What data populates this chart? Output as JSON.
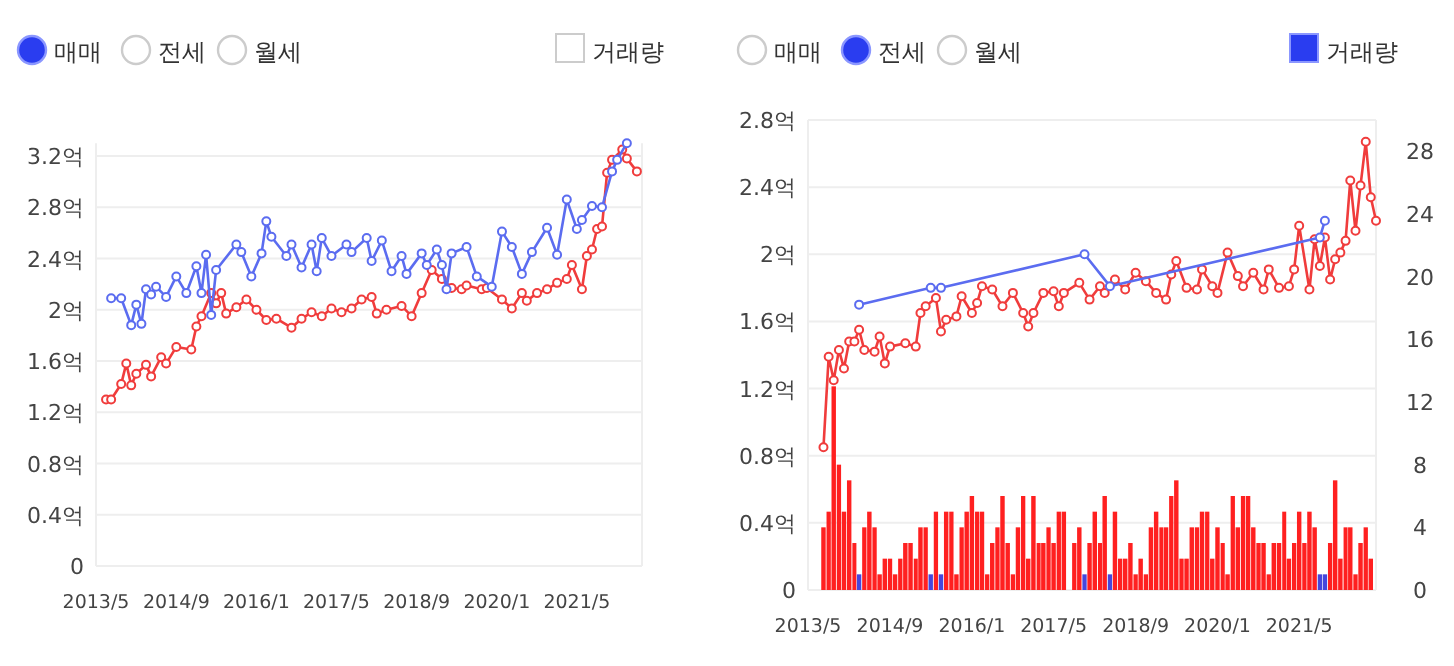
{
  "chart_data": [
    {
      "type": "line",
      "annotations": [
        "매매",
        "전세",
        "월세",
        "거래량"
      ],
      "xlim": [
        "2013-05",
        "2022-06"
      ],
      "xticks": [
        {
          "value": "2013-05",
          "label": "2013/5"
        },
        {
          "value": "2014-09",
          "label": "2014/9"
        },
        {
          "value": "2016-01",
          "label": "2016/1"
        },
        {
          "value": "2017-05",
          "label": "2017/5"
        },
        {
          "value": "2018-09",
          "label": "2018/9"
        },
        {
          "value": "2020-01",
          "label": "2020/1"
        },
        {
          "value": "2021-05",
          "label": "2021/5"
        }
      ],
      "ylim": [
        0,
        3.3
      ],
      "yticks": [
        0,
        {
          "value": 0.4,
          "label": "0.4억"
        },
        {
          "value": 0.8,
          "label": "0.8억"
        },
        {
          "value": 1.2,
          "label": "1.2억"
        },
        {
          "value": 1.6,
          "label": "1.6억"
        },
        {
          "value": 2,
          "label": "2억"
        },
        {
          "value": 2.4,
          "label": "2.4억"
        },
        {
          "value": 2.8,
          "label": "2.8억"
        },
        {
          "value": 3.2,
          "label": "3.2억"
        }
      ],
      "grid": "y",
      "marker": "circle",
      "series": [
        {
          "color": "#f03c3c",
          "x": [
            "2013-07",
            "2013-08",
            "2013-10",
            "2013-11",
            "2013-12",
            "2014-01",
            "2014-03",
            "2014-04",
            "2014-06",
            "2014-07",
            "2014-09",
            "2014-12",
            "2015-01",
            "2015-02",
            "2015-04",
            "2015-05",
            "2015-06",
            "2015-07",
            "2015-09",
            "2015-11",
            "2016-01",
            "2016-03",
            "2016-05",
            "2016-08",
            "2016-10",
            "2016-12",
            "2017-02",
            "2017-04",
            "2017-06",
            "2017-08",
            "2017-10",
            "2017-12",
            "2018-01",
            "2018-03",
            "2018-06",
            "2018-08",
            "2018-10",
            "2018-12",
            "2019-02",
            "2019-04",
            "2019-06",
            "2019-07",
            "2019-10",
            "2019-11",
            "2020-02",
            "2020-04",
            "2020-06",
            "2020-07",
            "2020-09",
            "2020-11",
            "2021-01",
            "2021-03",
            "2021-04",
            "2021-06",
            "2021-07",
            "2021-08",
            "2021-09",
            "2021-10",
            "2021-11",
            "2021-12",
            "2022-02",
            "2022-03",
            "2022-05"
          ],
          "values": [
            1.3,
            1.3,
            1.42,
            1.58,
            1.41,
            1.5,
            1.57,
            1.48,
            1.63,
            1.58,
            1.71,
            1.69,
            1.87,
            1.95,
            2.13,
            2.05,
            2.13,
            1.97,
            2.02,
            2.08,
            2.0,
            1.92,
            1.93,
            1.86,
            1.93,
            1.98,
            1.95,
            2.01,
            1.98,
            2.01,
            2.08,
            2.1,
            1.97,
            2.0,
            2.03,
            1.95,
            2.13,
            2.31,
            2.24,
            2.17,
            2.16,
            2.19,
            2.16,
            2.17,
            2.08,
            2.01,
            2.13,
            2.07,
            2.13,
            2.16,
            2.21,
            2.24,
            2.35,
            2.16,
            2.42,
            2.47,
            2.63,
            2.65,
            3.07,
            3.17,
            3.25,
            3.18,
            3.08
          ]
        },
        {
          "color": "#5b6cf0",
          "x": [
            "2013-08",
            "2013-10",
            "2013-12",
            "2014-01",
            "2014-02",
            "2014-03",
            "2014-04",
            "2014-05",
            "2014-07",
            "2014-09",
            "2014-11",
            "2015-01",
            "2015-02",
            "2015-03",
            "2015-04",
            "2015-05",
            "2015-09",
            "2015-10",
            "2015-12",
            "2016-02",
            "2016-03",
            "2016-04",
            "2016-07",
            "2016-08",
            "2016-10",
            "2016-12",
            "2017-01",
            "2017-02",
            "2017-04",
            "2017-07",
            "2017-08",
            "2017-11",
            "2017-12",
            "2018-02",
            "2018-04",
            "2018-06",
            "2018-07",
            "2018-10",
            "2018-11",
            "2019-01",
            "2019-02",
            "2019-03",
            "2019-04",
            "2019-07",
            "2019-09",
            "2019-12",
            "2020-02",
            "2020-04",
            "2020-06",
            "2020-08",
            "2020-11",
            "2021-01",
            "2021-03",
            "2021-05",
            "2021-06",
            "2021-08",
            "2021-10",
            "2021-12",
            "2022-01",
            "2022-03"
          ],
          "values": [
            2.09,
            2.09,
            1.88,
            2.04,
            1.89,
            2.16,
            2.12,
            2.18,
            2.1,
            2.26,
            2.13,
            2.34,
            2.13,
            2.43,
            1.96,
            2.31,
            2.51,
            2.45,
            2.26,
            2.44,
            2.69,
            2.57,
            2.42,
            2.51,
            2.33,
            2.51,
            2.3,
            2.56,
            2.42,
            2.51,
            2.45,
            2.56,
            2.38,
            2.54,
            2.3,
            2.42,
            2.28,
            2.44,
            2.35,
            2.47,
            2.35,
            2.16,
            2.44,
            2.49,
            2.26,
            2.18,
            2.61,
            2.49,
            2.28,
            2.45,
            2.64,
            2.43,
            2.86,
            2.63,
            2.7,
            2.81,
            2.8,
            3.08,
            3.17,
            3.3
          ]
        }
      ]
    },
    {
      "type": "line",
      "annotations": [
        "매매",
        "전세",
        "월세",
        "거래량"
      ],
      "xlim": [
        "2013-05",
        "2022-08"
      ],
      "xticks": [
        {
          "value": "2013-05",
          "label": "2013/5"
        },
        {
          "value": "2014-09",
          "label": "2014/9"
        },
        {
          "value": "2016-01",
          "label": "2016/1"
        },
        {
          "value": "2017-05",
          "label": "2017/5"
        },
        {
          "value": "2018-09",
          "label": "2018/9"
        },
        {
          "value": "2020-01",
          "label": "2020/1"
        },
        {
          "value": "2021-05",
          "label": "2021/5"
        }
      ],
      "ylim": [
        0,
        2.8
      ],
      "yticks": [
        0,
        {
          "value": 0.4,
          "label": "0.4억"
        },
        {
          "value": 0.8,
          "label": "0.8억"
        },
        {
          "value": 1.2,
          "label": "1.2억"
        },
        {
          "value": 1.6,
          "label": "1.6억"
        },
        {
          "value": 2,
          "label": "2억"
        },
        {
          "value": 2.4,
          "label": "2.4억"
        },
        {
          "value": 2.8,
          "label": "2.8억"
        }
      ],
      "y2lim": [
        0,
        30
      ],
      "y2ticks": [
        0,
        4,
        8,
        12,
        16,
        20,
        24,
        28
      ],
      "grid": "y",
      "marker": "circle",
      "series": [
        {
          "type": "bar",
          "axis": "y2",
          "color": "#ff2020",
          "x": [
            "2013-08",
            "2013-09",
            "2013-10",
            "2013-11",
            "2013-12",
            "2014-01",
            "2014-02",
            "2014-03",
            "2014-04",
            "2014-05",
            "2014-06",
            "2014-07",
            "2014-08",
            "2014-09",
            "2014-10",
            "2014-11",
            "2014-12",
            "2015-01",
            "2015-02",
            "2015-03",
            "2015-04",
            "2015-05",
            "2015-06",
            "2015-07",
            "2015-08",
            "2015-09",
            "2015-10",
            "2015-11",
            "2015-12",
            "2016-01",
            "2016-02",
            "2016-03",
            "2016-04",
            "2016-05",
            "2016-06",
            "2016-07",
            "2016-08",
            "2016-09",
            "2016-10",
            "2016-11",
            "2016-12",
            "2017-01",
            "2017-02",
            "2017-03",
            "2017-04",
            "2017-05",
            "2017-06",
            "2017-07",
            "2017-08",
            "2017-09",
            "2017-10",
            "2017-11",
            "2017-12",
            "2018-01",
            "2018-02",
            "2018-03",
            "2018-04",
            "2018-05",
            "2018-06",
            "2018-07",
            "2018-08",
            "2018-09",
            "2018-10",
            "2018-11",
            "2018-12",
            "2019-01",
            "2019-02",
            "2019-03",
            "2019-04",
            "2019-05",
            "2019-06",
            "2019-07",
            "2019-08",
            "2019-09",
            "2019-10",
            "2019-11",
            "2019-12",
            "2020-01",
            "2020-02",
            "2020-03",
            "2020-04",
            "2020-05",
            "2020-06",
            "2020-07",
            "2020-08",
            "2020-09",
            "2020-10",
            "2020-11",
            "2020-12",
            "2021-01",
            "2021-02",
            "2021-03",
            "2021-04",
            "2021-05",
            "2021-06",
            "2021-07",
            "2021-08",
            "2021-09",
            "2021-10",
            "2021-11",
            "2021-12",
            "2022-01",
            "2022-02",
            "2022-03",
            "2022-04",
            "2022-05",
            "2022-06",
            "2022-07"
          ],
          "values": [
            4,
            5,
            13,
            8,
            5,
            7,
            3,
            null,
            4,
            5,
            4,
            1,
            2,
            2,
            1,
            2,
            3,
            3,
            2,
            4,
            4,
            null,
            5,
            null,
            5,
            5,
            1,
            4,
            5,
            6,
            5,
            5,
            1,
            3,
            4,
            6,
            3,
            1,
            4,
            6,
            2,
            6,
            3,
            3,
            4,
            3,
            5,
            5,
            0,
            3,
            4,
            null,
            3,
            5,
            3,
            6,
            null,
            5,
            2,
            2,
            3,
            1,
            2,
            1,
            4,
            5,
            4,
            4,
            6,
            7,
            2,
            2,
            4,
            4,
            5,
            5,
            2,
            4,
            3,
            1,
            6,
            4,
            6,
            6,
            4,
            3,
            3,
            1,
            3,
            3,
            5,
            2,
            3,
            5,
            3,
            5,
            4,
            null,
            null,
            3,
            7,
            2,
            4,
            4,
            1,
            3,
            4,
            2
          ]
        },
        {
          "type": "bar",
          "axis": "y2",
          "color": "#4646dc",
          "x": [
            "2014-03",
            "2015-05",
            "2015-07",
            "2017-11",
            "2018-04",
            "2021-09",
            "2021-10"
          ],
          "values": [
            1,
            1,
            1,
            1,
            1,
            1,
            1
          ]
        },
        {
          "color": "#f03c3c",
          "x": [
            "2013-08",
            "2013-09",
            "2013-10",
            "2013-11",
            "2013-12",
            "2014-01",
            "2014-02",
            "2014-03",
            "2014-04",
            "2014-06",
            "2014-07",
            "2014-08",
            "2014-09",
            "2014-12",
            "2015-02",
            "2015-03",
            "2015-04",
            "2015-06",
            "2015-07",
            "2015-08",
            "2015-10",
            "2015-11",
            "2016-01",
            "2016-02",
            "2016-03",
            "2016-05",
            "2016-07",
            "2016-09",
            "2016-11",
            "2016-12",
            "2017-01",
            "2017-03",
            "2017-05",
            "2017-06",
            "2017-07",
            "2017-10",
            "2017-12",
            "2018-02",
            "2018-03",
            "2018-05",
            "2018-07",
            "2018-09",
            "2018-11",
            "2019-01",
            "2019-03",
            "2019-04",
            "2019-05",
            "2019-07",
            "2019-09",
            "2019-10",
            "2019-12",
            "2020-01",
            "2020-03",
            "2020-05",
            "2020-06",
            "2020-08",
            "2020-10",
            "2020-11",
            "2021-01",
            "2021-03",
            "2021-04",
            "2021-05",
            "2021-07",
            "2021-08",
            "2021-09",
            "2021-10",
            "2021-11",
            "2021-12",
            "2022-01",
            "2022-02",
            "2022-03",
            "2022-04",
            "2022-05",
            "2022-06",
            "2022-07",
            "2022-08"
          ],
          "values": [
            0.85,
            1.39,
            1.25,
            1.43,
            1.32,
            1.48,
            1.48,
            1.55,
            1.43,
            1.42,
            1.51,
            1.35,
            1.45,
            1.47,
            1.45,
            1.65,
            1.69,
            1.74,
            1.54,
            1.61,
            1.63,
            1.75,
            1.65,
            1.71,
            1.81,
            1.79,
            1.69,
            1.77,
            1.65,
            1.57,
            1.65,
            1.77,
            1.78,
            1.69,
            1.77,
            1.83,
            1.73,
            1.81,
            1.77,
            1.85,
            1.79,
            1.89,
            1.84,
            1.77,
            1.73,
            1.88,
            1.96,
            1.8,
            1.79,
            1.91,
            1.81,
            1.77,
            2.01,
            1.87,
            1.81,
            1.89,
            1.79,
            1.91,
            1.8,
            1.81,
            1.91,
            2.17,
            1.79,
            2.09,
            1.93,
            2.1,
            1.85,
            1.97,
            2.01,
            2.08,
            2.44,
            2.14,
            2.41,
            2.67,
            2.34,
            2.2
          ]
        },
        {
          "color": "#5b6cf0",
          "x": [
            "2014-03",
            "2015-05",
            "2015-07",
            "2017-11",
            "2018-04",
            "2021-09",
            "2021-10"
          ],
          "values": [
            1.7,
            1.8,
            1.8,
            2.0,
            1.81,
            2.1,
            2.2
          ]
        }
      ]
    }
  ]
}
